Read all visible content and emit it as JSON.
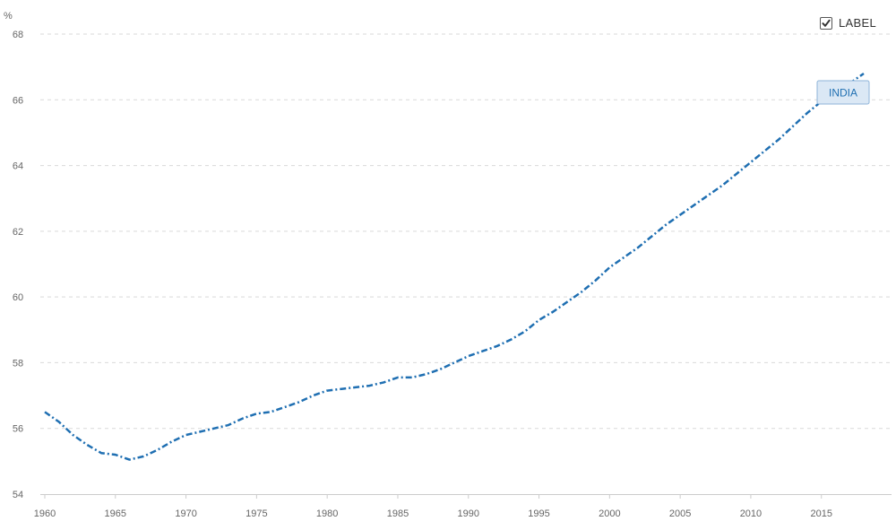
{
  "unit_label": "%",
  "label_toggle": {
    "text": "LABEL",
    "checked": true
  },
  "colors": {
    "series": "#1f6fb2",
    "gridline": "#d9d9d9",
    "tag_fill": "#dbe8f5",
    "tag_border": "#8fb5d9",
    "tick_text": "#666666"
  },
  "chart_data": {
    "type": "line",
    "title": "",
    "xlabel": "",
    "ylabel": "%",
    "xlim": [
      1960,
      2018
    ],
    "ylim": [
      54,
      68
    ],
    "x_ticks": [
      1960,
      1965,
      1970,
      1975,
      1980,
      1985,
      1990,
      1995,
      2000,
      2005,
      2010,
      2015
    ],
    "y_ticks": [
      54,
      56,
      58,
      60,
      62,
      64,
      66,
      68
    ],
    "grid": true,
    "line_style": "dash-dot",
    "series": [
      {
        "name": "INDIA",
        "x": [
          1960,
          1961,
          1962,
          1963,
          1964,
          1965,
          1966,
          1967,
          1968,
          1969,
          1970,
          1971,
          1972,
          1973,
          1974,
          1975,
          1976,
          1977,
          1978,
          1979,
          1980,
          1981,
          1982,
          1983,
          1984,
          1985,
          1986,
          1987,
          1988,
          1989,
          1990,
          1991,
          1992,
          1993,
          1994,
          1995,
          1996,
          1997,
          1998,
          1999,
          2000,
          2001,
          2002,
          2003,
          2004,
          2005,
          2006,
          2007,
          2008,
          2009,
          2010,
          2011,
          2012,
          2013,
          2014,
          2015,
          2016,
          2017,
          2018
        ],
        "values": [
          56.5,
          56.2,
          55.8,
          55.5,
          55.25,
          55.2,
          55.05,
          55.15,
          55.35,
          55.6,
          55.8,
          55.9,
          56.0,
          56.1,
          56.3,
          56.45,
          56.5,
          56.65,
          56.8,
          57.0,
          57.15,
          57.2,
          57.25,
          57.3,
          57.4,
          57.55,
          57.55,
          57.65,
          57.8,
          58.0,
          58.2,
          58.35,
          58.5,
          58.7,
          58.95,
          59.3,
          59.55,
          59.85,
          60.15,
          60.5,
          60.9,
          61.2,
          61.5,
          61.85,
          62.2,
          62.5,
          62.8,
          63.1,
          63.4,
          63.75,
          64.1,
          64.45,
          64.8,
          65.2,
          65.6,
          65.95,
          66.3,
          66.5,
          66.8
        ]
      }
    ]
  }
}
